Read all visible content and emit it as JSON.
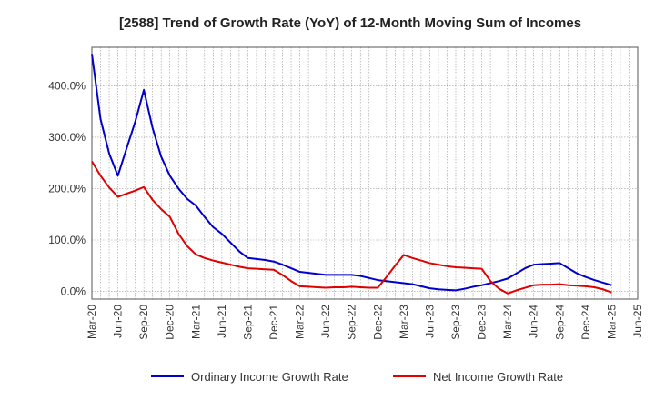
{
  "chart_data": {
    "type": "line",
    "title": "[2588]  Trend of Growth Rate (YoY) of 12-Month Moving Sum of Incomes",
    "xlabel": "",
    "ylabel": "",
    "x_tick_labels": [
      "Mar-20",
      "Jun-20",
      "Sep-20",
      "Dec-20",
      "Mar-21",
      "Jun-21",
      "Sep-21",
      "Dec-21",
      "Mar-22",
      "Jun-22",
      "Sep-22",
      "Dec-22",
      "Mar-23",
      "Jun-23",
      "Sep-23",
      "Dec-23",
      "Mar-24",
      "Jun-24",
      "Sep-24",
      "Dec-24",
      "Mar-25",
      "Jun-25"
    ],
    "y_ticks": [
      0,
      100,
      200,
      300,
      400
    ],
    "y_tick_labels": [
      "0.0%",
      "100.0%",
      "200.0%",
      "300.0%",
      "400.0%"
    ],
    "ylim": [
      -15,
      475
    ],
    "grid": true,
    "legend_position": "bottom",
    "x": [
      "Mar-20",
      "Apr-20",
      "May-20",
      "Jun-20",
      "Jul-20",
      "Aug-20",
      "Sep-20",
      "Oct-20",
      "Nov-20",
      "Dec-20",
      "Jan-21",
      "Feb-21",
      "Mar-21",
      "Apr-21",
      "May-21",
      "Jun-21",
      "Jul-21",
      "Aug-21",
      "Sep-21",
      "Oct-21",
      "Nov-21",
      "Dec-21",
      "Jan-22",
      "Feb-22",
      "Mar-22",
      "Apr-22",
      "May-22",
      "Jun-22",
      "Jul-22",
      "Aug-22",
      "Sep-22",
      "Oct-22",
      "Nov-22",
      "Dec-22",
      "Jan-23",
      "Feb-23",
      "Mar-23",
      "Apr-23",
      "May-23",
      "Jun-23",
      "Jul-23",
      "Aug-23",
      "Sep-23",
      "Oct-23",
      "Nov-23",
      "Dec-23",
      "Jan-24",
      "Feb-24",
      "Mar-24",
      "Apr-24",
      "May-24",
      "Jun-24",
      "Jul-24",
      "Aug-24",
      "Sep-24",
      "Oct-24",
      "Nov-24",
      "Dec-24",
      "Jan-25",
      "Feb-25",
      "Mar-25"
    ],
    "series": [
      {
        "name": "Ordinary Income Growth Rate",
        "color": "#0000cc",
        "values": [
          462,
          335,
          268,
          225,
          278,
          330,
          392,
          318,
          262,
          225,
          200,
          180,
          167,
          145,
          125,
          112,
          95,
          78,
          65,
          63,
          61,
          58,
          52,
          45,
          38,
          36,
          34,
          32,
          32,
          32,
          32,
          30,
          26,
          22,
          20,
          18,
          16,
          14,
          10,
          6,
          4,
          3,
          2,
          5,
          9,
          12,
          16,
          20,
          25,
          35,
          45,
          52,
          53,
          54,
          55,
          45,
          35,
          28,
          22,
          17,
          12
        ],
        "x_end": 60
      },
      {
        "name": "Net Income Growth Rate",
        "color": "#e00000",
        "values": [
          253,
          225,
          202,
          184,
          190,
          196,
          203,
          178,
          160,
          145,
          112,
          88,
          72,
          65,
          60,
          56,
          52,
          48,
          45,
          44,
          43,
          42,
          32,
          20,
          10,
          9,
          8,
          7,
          8,
          8,
          9,
          8,
          7,
          7,
          28,
          50,
          71,
          65,
          60,
          55,
          52,
          49,
          47,
          46,
          45,
          44,
          20,
          5,
          -4,
          2,
          7,
          12,
          13,
          13,
          14,
          12,
          11,
          10,
          8,
          4,
          -2
        ],
        "x_end": 60
      }
    ]
  }
}
